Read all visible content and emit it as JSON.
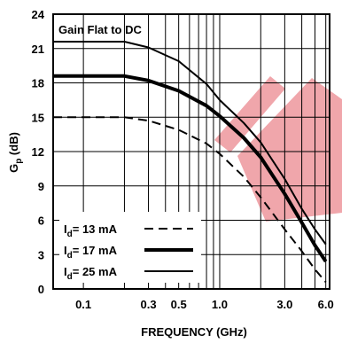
{
  "chart_data": {
    "type": "line",
    "x_scale": "log",
    "xlim": [
      0.06,
      6.4
    ],
    "ylim": [
      0,
      24
    ],
    "xlabel": "FREQUENCY (GHz)",
    "ylabel_main": "G",
    "ylabel_sub": "p",
    "ylabel_unit": " (dB)",
    "x_ticks": [
      {
        "value": 0.1,
        "label": "0.1"
      },
      {
        "value": 0.3,
        "label": "0.3"
      },
      {
        "value": 0.5,
        "label": "0.5"
      },
      {
        "value": 1.0,
        "label": "1.0"
      },
      {
        "value": 3.0,
        "label": "3.0"
      },
      {
        "value": 6.0,
        "label": "6.0"
      }
    ],
    "x_grid": [
      0.1,
      0.2,
      0.3,
      0.4,
      0.5,
      0.6,
      0.7,
      0.8,
      0.9,
      1,
      2,
      3,
      4,
      5,
      6
    ],
    "y_ticks": [
      0,
      3,
      6,
      9,
      12,
      15,
      18,
      21,
      24
    ],
    "grid": true,
    "annotation": "Gain Flat to DC",
    "legend_position": "bottom-left",
    "series": [
      {
        "name": "13 mA",
        "legend_prefix": "I",
        "legend_sub": "d",
        "legend_value": "= 13 mA",
        "style": "dashed",
        "x": [
          0.06,
          0.1,
          0.2,
          0.3,
          0.5,
          0.8,
          1.0,
          1.5,
          2.0,
          3.0,
          4.0,
          5.0,
          6.0
        ],
        "y": [
          15.0,
          15.0,
          15.0,
          14.7,
          13.9,
          12.7,
          11.8,
          9.8,
          8.0,
          5.2,
          3.3,
          1.7,
          0.6
        ]
      },
      {
        "name": "17 mA",
        "legend_prefix": "I",
        "legend_sub": "d",
        "legend_value": "= 17 mA",
        "style": "thick",
        "x": [
          0.06,
          0.1,
          0.2,
          0.3,
          0.5,
          0.8,
          1.0,
          1.5,
          2.0,
          3.0,
          4.0,
          5.0,
          6.0
        ],
        "y": [
          18.6,
          18.6,
          18.6,
          18.2,
          17.3,
          16.0,
          15.1,
          13.2,
          11.5,
          8.3,
          5.8,
          3.8,
          2.4
        ]
      },
      {
        "name": "25 mA",
        "legend_prefix": "I",
        "legend_sub": "d",
        "legend_value": "= 25 mA",
        "style": "thin",
        "x": [
          0.06,
          0.1,
          0.2,
          0.3,
          0.5,
          0.8,
          1.0,
          1.5,
          2.0,
          3.0,
          4.0,
          5.0,
          6.0
        ],
        "y": [
          21.6,
          21.6,
          21.6,
          21.1,
          19.9,
          17.9,
          16.5,
          14.5,
          12.8,
          9.6,
          7.0,
          5.2,
          3.9
        ]
      }
    ]
  }
}
